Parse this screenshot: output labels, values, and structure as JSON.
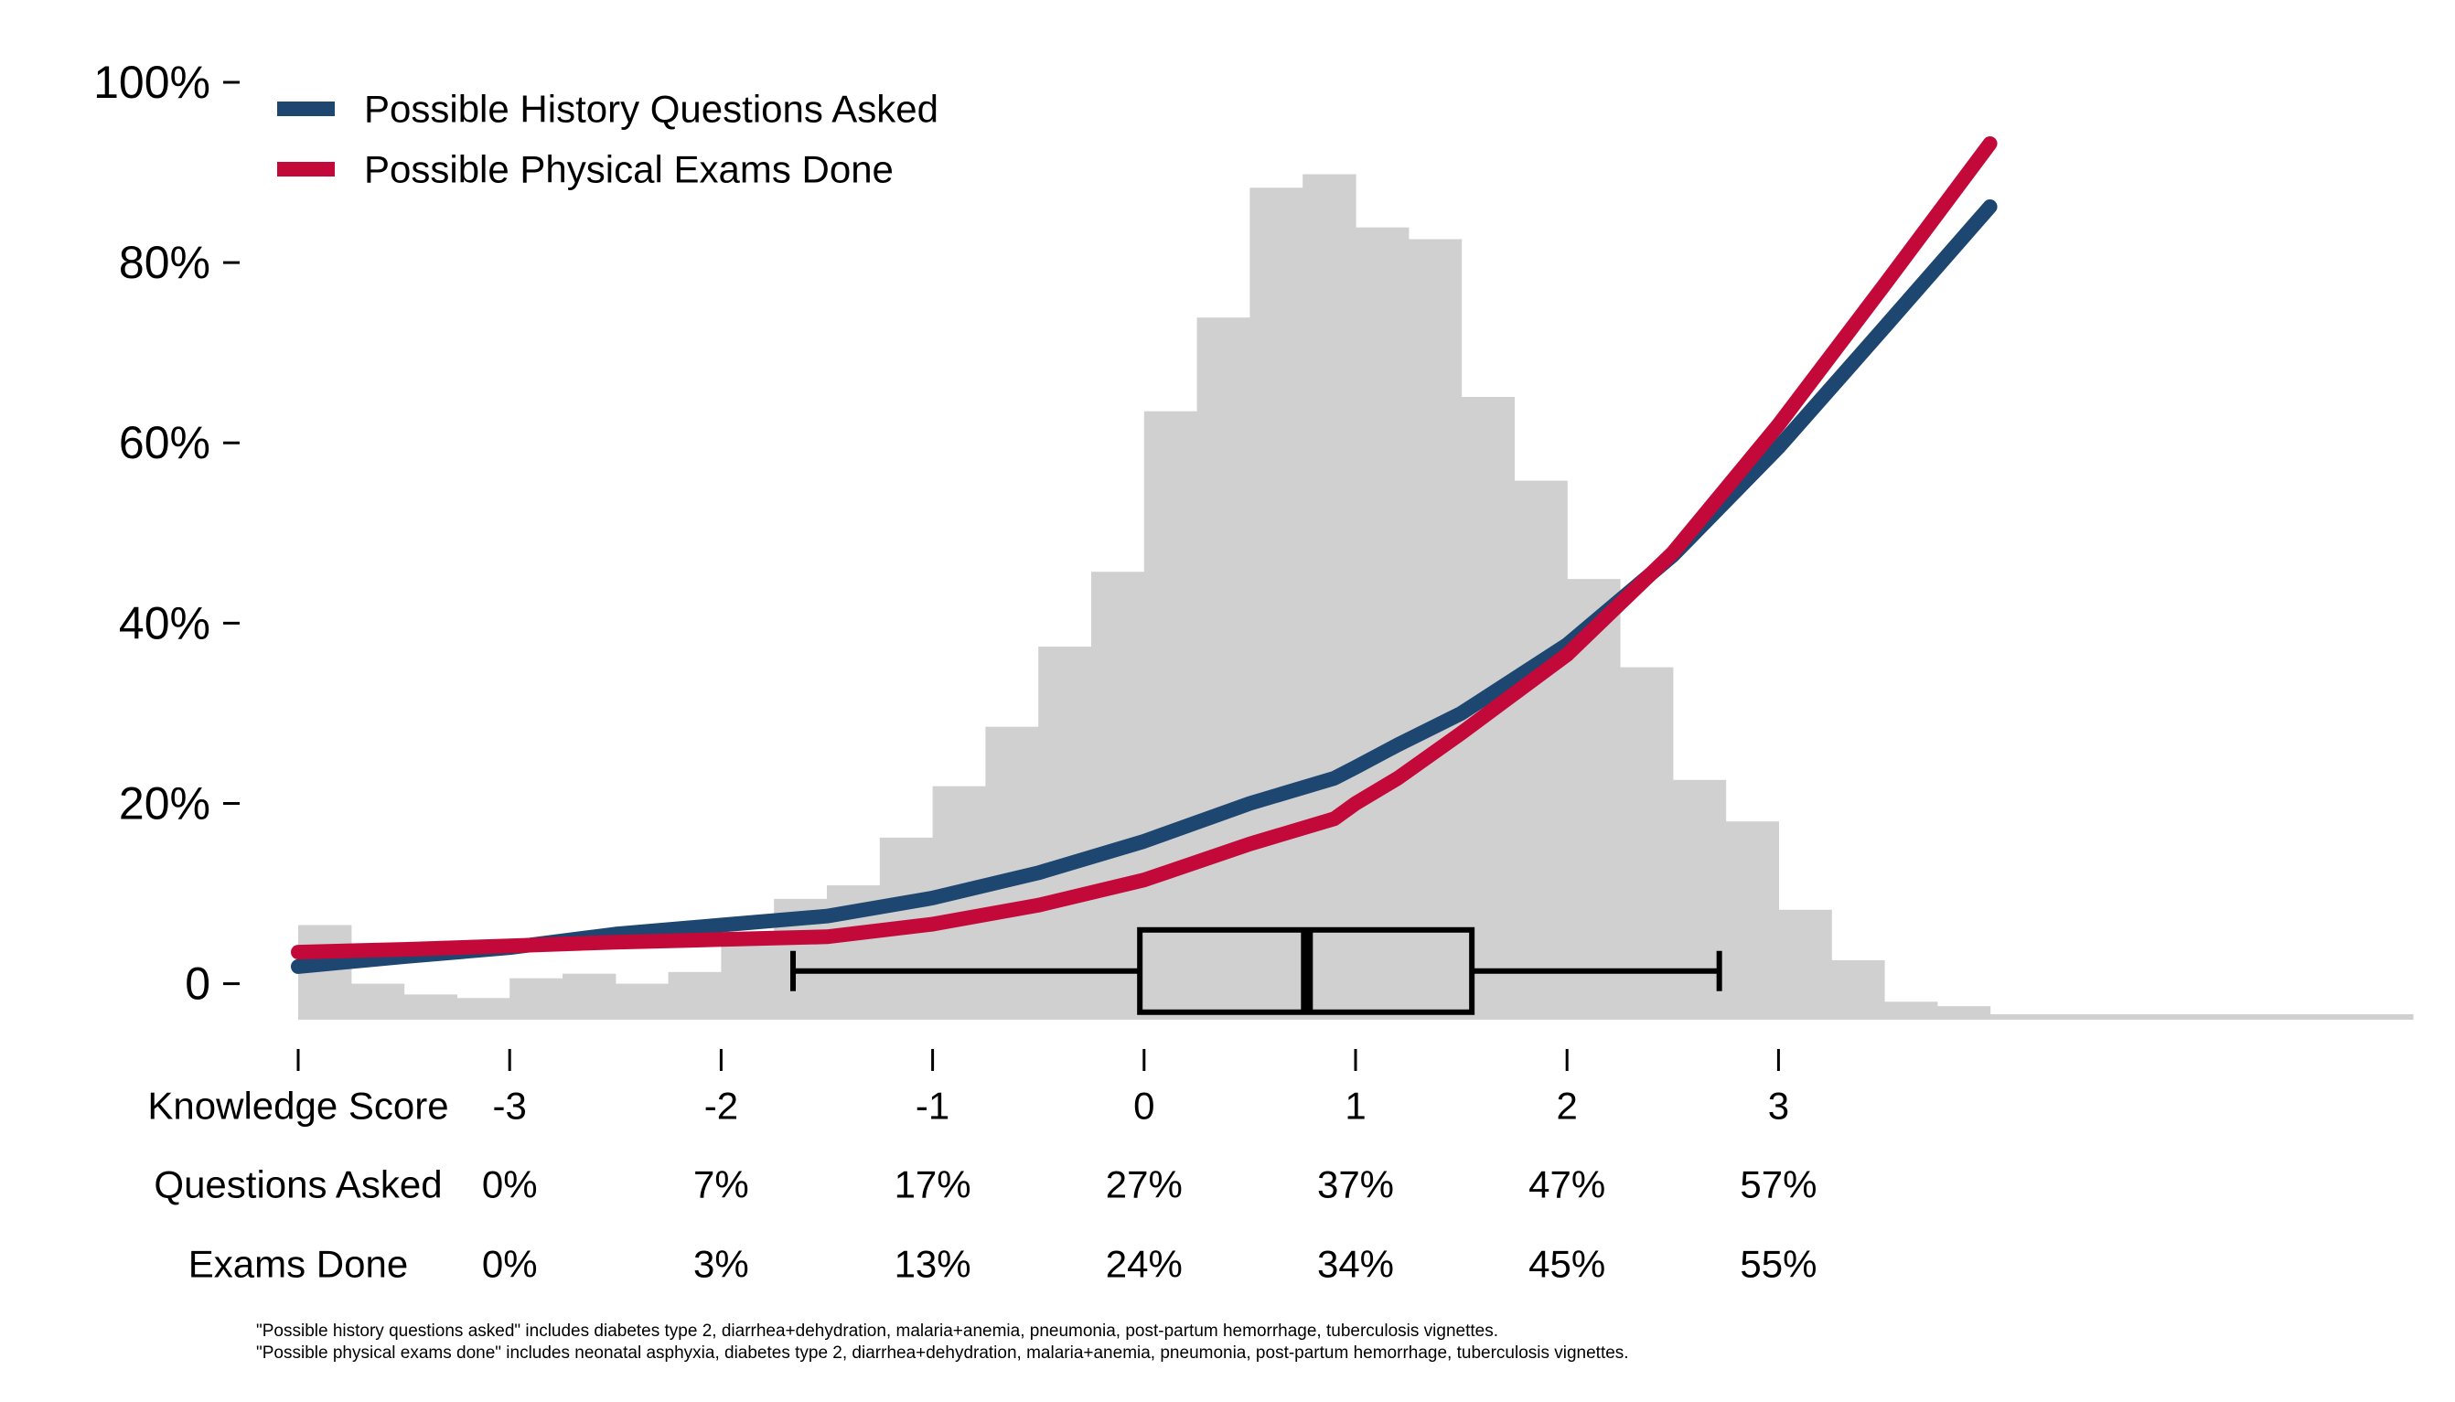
{
  "chart_data": {
    "type": "histogram+line",
    "ylim": [
      -0.04,
      1.0
    ],
    "xlim": [
      -4.0,
      6.0
    ],
    "y_ticks": [
      {
        "value": 1.0,
        "label": "100%"
      },
      {
        "value": 0.8,
        "label": "80%"
      },
      {
        "value": 0.6,
        "label": "60%"
      },
      {
        "value": 0.4,
        "label": "40%"
      },
      {
        "value": 0.2,
        "label": "20%"
      },
      {
        "value": 0.0,
        "label": "0"
      }
    ],
    "x_ticks": [
      -4,
      -3,
      -2,
      -1,
      0,
      1,
      2,
      3
    ],
    "legend": {
      "placement": "top-left",
      "entries": [
        {
          "label": "Possible History Questions Asked",
          "color": "#1d4670"
        },
        {
          "label": "Possible Physical Exams Done",
          "color": "#c3093a"
        }
      ]
    },
    "histogram": {
      "color": "#d0d0d0",
      "bin_width": 0.25,
      "bins": [
        {
          "x0": -4.0,
          "top": 0.065
        },
        {
          "x0": -3.75,
          "top": 0.0
        },
        {
          "x0": -3.5,
          "top": -0.012
        },
        {
          "x0": -3.25,
          "top": -0.016
        },
        {
          "x0": -3.0,
          "top": 0.006
        },
        {
          "x0": -2.75,
          "top": 0.011
        },
        {
          "x0": -2.5,
          "top": 0.0
        },
        {
          "x0": -2.25,
          "top": 0.013
        },
        {
          "x0": -2.0,
          "top": 0.047
        },
        {
          "x0": -1.75,
          "top": 0.094
        },
        {
          "x0": -1.5,
          "top": 0.109
        },
        {
          "x0": -1.25,
          "top": 0.162
        },
        {
          "x0": -1.0,
          "top": 0.219
        },
        {
          "x0": -0.75,
          "top": 0.285
        },
        {
          "x0": -0.5,
          "top": 0.374
        },
        {
          "x0": -0.25,
          "top": 0.457
        },
        {
          "x0": 0.0,
          "top": 0.635
        },
        {
          "x0": 0.25,
          "top": 0.739
        },
        {
          "x0": 0.5,
          "top": 0.883
        },
        {
          "x0": 0.75,
          "top": 0.898
        },
        {
          "x0": 1.0,
          "top": 0.839
        },
        {
          "x0": 1.25,
          "top": 0.826
        },
        {
          "x0": 1.5,
          "top": 0.651
        },
        {
          "x0": 1.75,
          "top": 0.558
        },
        {
          "x0": 2.0,
          "top": 0.449
        },
        {
          "x0": 2.25,
          "top": 0.351
        },
        {
          "x0": 2.5,
          "top": 0.226
        },
        {
          "x0": 2.75,
          "top": 0.18
        },
        {
          "x0": 3.0,
          "top": 0.082
        },
        {
          "x0": 3.25,
          "top": 0.026
        },
        {
          "x0": 3.5,
          "top": -0.02
        },
        {
          "x0": 3.75,
          "top": -0.025
        },
        {
          "x0": 4.0,
          "top": -0.034
        },
        {
          "x0": 4.25,
          "top": -0.034
        },
        {
          "x0": 4.5,
          "top": -0.04
        },
        {
          "x0": 4.75,
          "top": -0.034
        },
        {
          "x0": 5.0,
          "top": -0.034
        },
        {
          "x0": 5.25,
          "top": -0.04
        },
        {
          "x0": 5.5,
          "top": -0.04
        },
        {
          "x0": 5.75,
          "top": -0.034
        }
      ]
    },
    "boxplot": {
      "y": 0.014,
      "whisker_low": -1.66,
      "q1": -0.02,
      "median": 0.77,
      "q3": 1.55,
      "whisker_high": 2.72
    },
    "series": [
      {
        "name": "Possible History Questions Asked",
        "color": "#1d4670",
        "x": [
          -4.0,
          -3.5,
          -3.0,
          -2.5,
          -2.0,
          -1.5,
          -1.0,
          -0.5,
          0.0,
          0.5,
          0.9,
          1.0,
          1.2,
          1.5,
          2.0,
          2.5,
          3.0,
          3.5,
          4.0
        ],
        "y": [
          0.019,
          0.03,
          0.04,
          0.055,
          0.065,
          0.075,
          0.095,
          0.123,
          0.158,
          0.2,
          0.228,
          0.24,
          0.265,
          0.3,
          0.376,
          0.475,
          0.595,
          0.728,
          0.862
        ]
      },
      {
        "name": "Possible Physical Exams Done",
        "color": "#c3093a",
        "x": [
          -4.0,
          -3.5,
          -3.0,
          -2.5,
          -2.0,
          -1.5,
          -1.0,
          -0.5,
          0.0,
          0.5,
          0.9,
          1.0,
          1.2,
          1.5,
          2.0,
          2.5,
          3.0,
          3.5,
          4.0
        ],
        "y": [
          0.035,
          0.038,
          0.042,
          0.046,
          0.049,
          0.052,
          0.066,
          0.087,
          0.115,
          0.155,
          0.183,
          0.2,
          0.228,
          0.278,
          0.365,
          0.478,
          0.62,
          0.775,
          0.932
        ]
      }
    ]
  },
  "table": {
    "rows": [
      {
        "label": "Knowledge Score",
        "values": [
          "-3",
          "-2",
          "-1",
          "0",
          "1",
          "2",
          "3"
        ]
      },
      {
        "label": "Questions Asked",
        "values": [
          "0%",
          "7%",
          "17%",
          "27%",
          "37%",
          "47%",
          "57%"
        ]
      },
      {
        "label": "Exams Done",
        "values": [
          "0%",
          "3%",
          "13%",
          "24%",
          "34%",
          "45%",
          "55%"
        ]
      }
    ]
  },
  "footnotes": [
    "\"Possible history questions asked\" includes diabetes type 2, diarrhea+dehydration, malaria+anemia, pneumonia, post-partum hemorrhage, tuberculosis vignettes.",
    "\"Possible physical exams done\" includes neonatal asphyxia, diabetes type 2, diarrhea+dehydration, malaria+anemia, pneumonia, post-partum hemorrhage, tuberculosis vignettes."
  ]
}
